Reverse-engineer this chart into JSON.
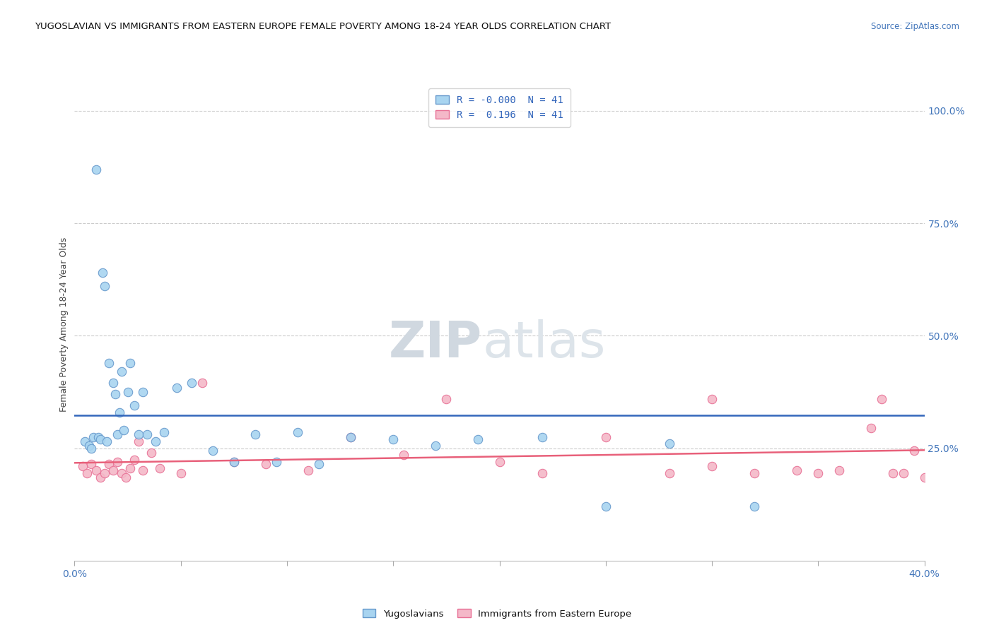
{
  "title": "YUGOSLAVIAN VS IMMIGRANTS FROM EASTERN EUROPE FEMALE POVERTY AMONG 18-24 YEAR OLDS CORRELATION CHART",
  "source": "Source: ZipAtlas.com",
  "ylabel": "Female Poverty Among 18-24 Year Olds",
  "ylabel_right_ticks": [
    "100.0%",
    "75.0%",
    "50.0%",
    "25.0%",
    ""
  ],
  "ylabel_right_vals": [
    1.0,
    0.75,
    0.5,
    0.25,
    0.0
  ],
  "legend_entry1": "R = -0.000  N = 41",
  "legend_entry2": "R =  0.196  N = 41",
  "legend_label1": "Yugoslavians",
  "legend_label2": "Immigrants from Eastern Europe",
  "watermark_zip": "ZIP",
  "watermark_atlas": "atlas",
  "color_blue": "#a8d4f0",
  "color_pink": "#f4b8c8",
  "color_blue_edge": "#6699cc",
  "color_pink_edge": "#e87095",
  "color_blue_line": "#3366bb",
  "color_pink_line": "#e8607a",
  "xlim": [
    0.0,
    0.4
  ],
  "ylim": [
    0.0,
    1.05
  ],
  "blue_r": 0.0,
  "pink_r": 0.196,
  "blue_points_x": [
    0.005,
    0.007,
    0.008,
    0.009,
    0.01,
    0.011,
    0.012,
    0.013,
    0.014,
    0.015,
    0.016,
    0.018,
    0.019,
    0.02,
    0.021,
    0.022,
    0.023,
    0.025,
    0.026,
    0.028,
    0.03,
    0.032,
    0.034,
    0.038,
    0.042,
    0.048,
    0.055,
    0.065,
    0.075,
    0.085,
    0.095,
    0.105,
    0.115,
    0.13,
    0.15,
    0.17,
    0.19,
    0.22,
    0.25,
    0.28,
    0.32
  ],
  "blue_points_y": [
    0.265,
    0.255,
    0.25,
    0.275,
    0.87,
    0.275,
    0.27,
    0.64,
    0.61,
    0.265,
    0.44,
    0.395,
    0.37,
    0.28,
    0.33,
    0.42,
    0.29,
    0.375,
    0.44,
    0.345,
    0.28,
    0.375,
    0.28,
    0.265,
    0.285,
    0.385,
    0.395,
    0.245,
    0.22,
    0.28,
    0.22,
    0.285,
    0.215,
    0.275,
    0.27,
    0.255,
    0.27,
    0.275,
    0.12,
    0.26,
    0.12
  ],
  "pink_points_x": [
    0.004,
    0.006,
    0.008,
    0.01,
    0.012,
    0.014,
    0.016,
    0.018,
    0.02,
    0.022,
    0.024,
    0.026,
    0.028,
    0.03,
    0.032,
    0.036,
    0.04,
    0.05,
    0.06,
    0.075,
    0.09,
    0.11,
    0.13,
    0.155,
    0.175,
    0.2,
    0.22,
    0.25,
    0.28,
    0.3,
    0.32,
    0.34,
    0.36,
    0.375,
    0.38,
    0.385,
    0.39,
    0.395,
    0.4,
    0.3,
    0.35
  ],
  "pink_points_y": [
    0.21,
    0.195,
    0.215,
    0.2,
    0.185,
    0.195,
    0.215,
    0.2,
    0.22,
    0.195,
    0.185,
    0.205,
    0.225,
    0.265,
    0.2,
    0.24,
    0.205,
    0.195,
    0.395,
    0.22,
    0.215,
    0.2,
    0.275,
    0.235,
    0.36,
    0.22,
    0.195,
    0.275,
    0.195,
    0.21,
    0.195,
    0.2,
    0.2,
    0.295,
    0.36,
    0.195,
    0.195,
    0.245,
    0.185,
    0.36,
    0.195
  ]
}
